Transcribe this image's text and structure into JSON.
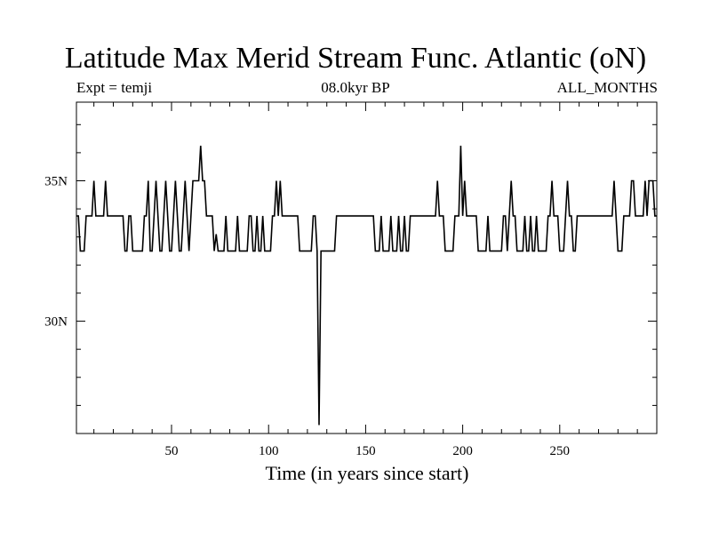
{
  "chart_data": {
    "type": "line",
    "title": "Latitude Max Merid Stream Func. Atlantic (oN)",
    "subtitle_left": "Expt = temji",
    "subtitle_center": "08.0kyr BP",
    "subtitle_right": "ALL_MONTHS",
    "xlabel": "Time (in years since start)",
    "ylabel": "",
    "xlim": [
      1,
      300
    ],
    "ylim": [
      26.0,
      37.8
    ],
    "x_ticks": [
      50,
      100,
      150,
      200,
      250
    ],
    "x_tick_labels": [
      "50",
      "100",
      "150",
      "200",
      "250"
    ],
    "y_ticks": [
      30,
      35
    ],
    "y_tick_labels": [
      "30N",
      "35N"
    ],
    "grid": false,
    "series": [
      {
        "points": [
          [
            1,
            33.75
          ],
          [
            2,
            33.75
          ],
          [
            3,
            32.5
          ],
          [
            4,
            32.5
          ],
          [
            5,
            32.5
          ],
          [
            6,
            33.75
          ],
          [
            7,
            33.75
          ],
          [
            8,
            33.75
          ],
          [
            9,
            33.75
          ],
          [
            10,
            35
          ],
          [
            11,
            33.75
          ],
          [
            12,
            33.75
          ],
          [
            13,
            33.75
          ],
          [
            14,
            33.75
          ],
          [
            15,
            33.75
          ],
          [
            16,
            35
          ],
          [
            17,
            33.75
          ],
          [
            18,
            33.75
          ],
          [
            19,
            33.75
          ],
          [
            20,
            33.75
          ],
          [
            21,
            33.75
          ],
          [
            22,
            33.75
          ],
          [
            23,
            33.75
          ],
          [
            24,
            33.75
          ],
          [
            25,
            33.75
          ],
          [
            26,
            32.5
          ],
          [
            27,
            32.5
          ],
          [
            28,
            33.75
          ],
          [
            29,
            33.75
          ],
          [
            30,
            32.5
          ],
          [
            31,
            32.5
          ],
          [
            32,
            32.5
          ],
          [
            33,
            32.5
          ],
          [
            34,
            32.5
          ],
          [
            35,
            32.5
          ],
          [
            36,
            33.75
          ],
          [
            37,
            33.75
          ],
          [
            38,
            35
          ],
          [
            39,
            32.5
          ],
          [
            40,
            32.5
          ],
          [
            41,
            33.75
          ],
          [
            42,
            35
          ],
          [
            43,
            33.75
          ],
          [
            44,
            32.5
          ],
          [
            45,
            32.5
          ],
          [
            46,
            33.75
          ],
          [
            47,
            35
          ],
          [
            48,
            33.75
          ],
          [
            49,
            32.5
          ],
          [
            50,
            32.5
          ],
          [
            51,
            33.75
          ],
          [
            52,
            35
          ],
          [
            53,
            33.75
          ],
          [
            54,
            32.5
          ],
          [
            55,
            32.5
          ],
          [
            56,
            33.75
          ],
          [
            57,
            35
          ],
          [
            58,
            33.75
          ],
          [
            59,
            32.5
          ],
          [
            60,
            33.75
          ],
          [
            61,
            35
          ],
          [
            62,
            35
          ],
          [
            63,
            35
          ],
          [
            64,
            35
          ],
          [
            65,
            36.25
          ],
          [
            66,
            35
          ],
          [
            67,
            35
          ],
          [
            68,
            33.75
          ],
          [
            69,
            33.75
          ],
          [
            70,
            33.75
          ],
          [
            71,
            33.75
          ],
          [
            72,
            32.5
          ],
          [
            73,
            33.1
          ],
          [
            74,
            32.5
          ],
          [
            75,
            32.5
          ],
          [
            76,
            32.5
          ],
          [
            77,
            32.5
          ],
          [
            78,
            33.75
          ],
          [
            79,
            32.5
          ],
          [
            80,
            32.5
          ],
          [
            81,
            32.5
          ],
          [
            82,
            32.5
          ],
          [
            83,
            32.5
          ],
          [
            84,
            33.75
          ],
          [
            85,
            32.5
          ],
          [
            86,
            32.5
          ],
          [
            87,
            32.5
          ],
          [
            88,
            32.5
          ],
          [
            89,
            32.5
          ],
          [
            90,
            33.75
          ],
          [
            91,
            33.75
          ],
          [
            92,
            32.5
          ],
          [
            93,
            32.5
          ],
          [
            94,
            33.75
          ],
          [
            95,
            32.5
          ],
          [
            96,
            32.5
          ],
          [
            97,
            33.75
          ],
          [
            98,
            32.5
          ],
          [
            99,
            32.5
          ],
          [
            100,
            32.5
          ],
          [
            101,
            32.5
          ],
          [
            102,
            33.75
          ],
          [
            103,
            33.75
          ],
          [
            104,
            35
          ],
          [
            105,
            33.75
          ],
          [
            106,
            35
          ],
          [
            107,
            33.75
          ],
          [
            108,
            33.75
          ],
          [
            109,
            33.75
          ],
          [
            110,
            33.75
          ],
          [
            111,
            33.75
          ],
          [
            112,
            33.75
          ],
          [
            113,
            33.75
          ],
          [
            114,
            33.75
          ],
          [
            115,
            33.75
          ],
          [
            116,
            32.5
          ],
          [
            117,
            32.5
          ],
          [
            118,
            32.5
          ],
          [
            119,
            32.5
          ],
          [
            120,
            32.5
          ],
          [
            121,
            32.5
          ],
          [
            122,
            32.5
          ],
          [
            123,
            33.75
          ],
          [
            124,
            33.75
          ],
          [
            125,
            32.5
          ],
          [
            126,
            26.3
          ],
          [
            127,
            32.5
          ],
          [
            128,
            32.5
          ],
          [
            129,
            32.5
          ],
          [
            130,
            32.5
          ],
          [
            131,
            32.5
          ],
          [
            132,
            32.5
          ],
          [
            133,
            32.5
          ],
          [
            134,
            32.5
          ],
          [
            135,
            33.75
          ],
          [
            136,
            33.75
          ],
          [
            137,
            33.75
          ],
          [
            138,
            33.75
          ],
          [
            139,
            33.75
          ],
          [
            140,
            33.75
          ],
          [
            141,
            33.75
          ],
          [
            142,
            33.75
          ],
          [
            143,
            33.75
          ],
          [
            144,
            33.75
          ],
          [
            145,
            33.75
          ],
          [
            146,
            33.75
          ],
          [
            147,
            33.75
          ],
          [
            148,
            33.75
          ],
          [
            149,
            33.75
          ],
          [
            150,
            33.75
          ],
          [
            151,
            33.75
          ],
          [
            152,
            33.75
          ],
          [
            153,
            33.75
          ],
          [
            154,
            33.75
          ],
          [
            155,
            32.5
          ],
          [
            156,
            32.5
          ],
          [
            157,
            32.5
          ],
          [
            158,
            33.75
          ],
          [
            159,
            32.5
          ],
          [
            160,
            32.5
          ],
          [
            161,
            32.5
          ],
          [
            162,
            32.5
          ],
          [
            163,
            33.75
          ],
          [
            164,
            32.5
          ],
          [
            165,
            32.5
          ],
          [
            166,
            32.5
          ],
          [
            167,
            33.75
          ],
          [
            168,
            32.5
          ],
          [
            169,
            32.5
          ],
          [
            170,
            33.75
          ],
          [
            171,
            32.5
          ],
          [
            172,
            32.5
          ],
          [
            173,
            33.75
          ],
          [
            174,
            33.75
          ],
          [
            175,
            33.75
          ],
          [
            176,
            33.75
          ],
          [
            177,
            33.75
          ],
          [
            178,
            33.75
          ],
          [
            179,
            33.75
          ],
          [
            180,
            33.75
          ],
          [
            181,
            33.75
          ],
          [
            182,
            33.75
          ],
          [
            183,
            33.75
          ],
          [
            184,
            33.75
          ],
          [
            185,
            33.75
          ],
          [
            186,
            33.75
          ],
          [
            187,
            35
          ],
          [
            188,
            33.75
          ],
          [
            189,
            33.75
          ],
          [
            190,
            33.75
          ],
          [
            191,
            32.5
          ],
          [
            192,
            32.5
          ],
          [
            193,
            32.5
          ],
          [
            194,
            32.5
          ],
          [
            195,
            32.5
          ],
          [
            196,
            33.75
          ],
          [
            197,
            33.75
          ],
          [
            198,
            33.75
          ],
          [
            199,
            36.25
          ],
          [
            200,
            33.75
          ],
          [
            201,
            35
          ],
          [
            202,
            33.75
          ],
          [
            203,
            33.75
          ],
          [
            204,
            33.75
          ],
          [
            205,
            33.75
          ],
          [
            206,
            33.75
          ],
          [
            207,
            33.75
          ],
          [
            208,
            32.5
          ],
          [
            209,
            32.5
          ],
          [
            210,
            32.5
          ],
          [
            211,
            32.5
          ],
          [
            212,
            32.5
          ],
          [
            213,
            33.75
          ],
          [
            214,
            32.5
          ],
          [
            215,
            32.5
          ],
          [
            216,
            32.5
          ],
          [
            217,
            32.5
          ],
          [
            218,
            32.5
          ],
          [
            219,
            32.5
          ],
          [
            220,
            32.5
          ],
          [
            221,
            33.75
          ],
          [
            222,
            33.75
          ],
          [
            223,
            32.5
          ],
          [
            224,
            33.75
          ],
          [
            225,
            35
          ],
          [
            226,
            33.75
          ],
          [
            227,
            33.75
          ],
          [
            228,
            32.5
          ],
          [
            229,
            32.5
          ],
          [
            230,
            32.5
          ],
          [
            231,
            32.5
          ],
          [
            232,
            33.75
          ],
          [
            233,
            32.5
          ],
          [
            234,
            32.5
          ],
          [
            235,
            33.75
          ],
          [
            236,
            32.5
          ],
          [
            237,
            32.5
          ],
          [
            238,
            33.75
          ],
          [
            239,
            32.5
          ],
          [
            240,
            32.5
          ],
          [
            241,
            32.5
          ],
          [
            242,
            32.5
          ],
          [
            243,
            32.5
          ],
          [
            244,
            33.75
          ],
          [
            245,
            33.75
          ],
          [
            246,
            35
          ],
          [
            247,
            33.75
          ],
          [
            248,
            33.75
          ],
          [
            249,
            33.75
          ],
          [
            250,
            32.5
          ],
          [
            251,
            32.5
          ],
          [
            252,
            32.5
          ],
          [
            253,
            33.75
          ],
          [
            254,
            35
          ],
          [
            255,
            33.75
          ],
          [
            256,
            33.75
          ],
          [
            257,
            32.5
          ],
          [
            258,
            32.5
          ],
          [
            259,
            33.75
          ],
          [
            260,
            33.75
          ],
          [
            261,
            33.75
          ],
          [
            262,
            33.75
          ],
          [
            263,
            33.75
          ],
          [
            264,
            33.75
          ],
          [
            265,
            33.75
          ],
          [
            266,
            33.75
          ],
          [
            267,
            33.75
          ],
          [
            268,
            33.75
          ],
          [
            269,
            33.75
          ],
          [
            270,
            33.75
          ],
          [
            271,
            33.75
          ],
          [
            272,
            33.75
          ],
          [
            273,
            33.75
          ],
          [
            274,
            33.75
          ],
          [
            275,
            33.75
          ],
          [
            276,
            33.75
          ],
          [
            277,
            33.75
          ],
          [
            278,
            35
          ],
          [
            279,
            33.75
          ],
          [
            280,
            32.5
          ],
          [
            281,
            32.5
          ],
          [
            282,
            32.5
          ],
          [
            283,
            33.75
          ],
          [
            284,
            33.75
          ],
          [
            285,
            33.75
          ],
          [
            286,
            33.75
          ],
          [
            287,
            35
          ],
          [
            288,
            35
          ],
          [
            289,
            33.75
          ],
          [
            290,
            33.75
          ],
          [
            291,
            33.75
          ],
          [
            292,
            33.75
          ],
          [
            293,
            33.75
          ],
          [
            294,
            35
          ],
          [
            295,
            33.75
          ],
          [
            296,
            35
          ],
          [
            297,
            35
          ],
          [
            298,
            35
          ],
          [
            299,
            33.75
          ],
          [
            300,
            33.75
          ]
        ]
      }
    ]
  }
}
